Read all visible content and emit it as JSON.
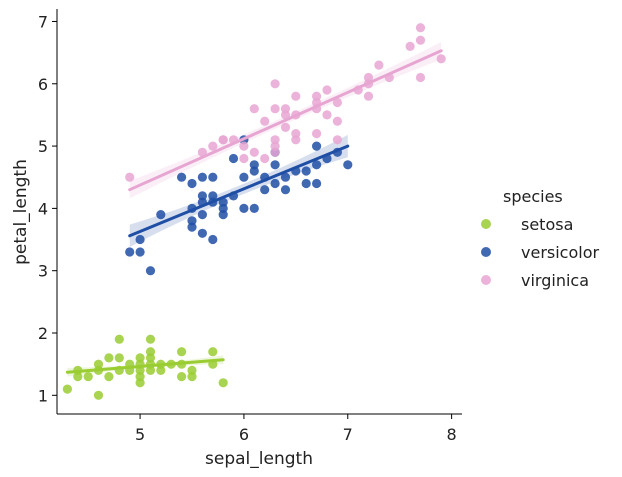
{
  "chart_data": {
    "type": "scatter",
    "xlabel": "sepal_length",
    "ylabel": "petal_length",
    "xlim": [
      4.2,
      8.1
    ],
    "ylim": [
      0.7,
      7.2
    ],
    "xticks": [
      5,
      6,
      7,
      8
    ],
    "yticks": [
      1,
      2,
      3,
      4,
      5,
      6,
      7
    ],
    "grid": false,
    "legend": {
      "title": "species",
      "placement": "right"
    },
    "series": [
      {
        "name": "setosa",
        "color": "#9acd32",
        "points": [
          [
            4.3,
            1.1
          ],
          [
            4.4,
            1.3
          ],
          [
            4.4,
            1.4
          ],
          [
            4.5,
            1.3
          ],
          [
            4.6,
            1.4
          ],
          [
            4.6,
            1.5
          ],
          [
            4.6,
            1.0
          ],
          [
            4.7,
            1.3
          ],
          [
            4.7,
            1.6
          ],
          [
            4.8,
            1.4
          ],
          [
            4.8,
            1.6
          ],
          [
            4.8,
            1.9
          ],
          [
            4.9,
            1.4
          ],
          [
            4.9,
            1.5
          ],
          [
            5.0,
            1.2
          ],
          [
            5.0,
            1.3
          ],
          [
            5.0,
            1.4
          ],
          [
            5.0,
            1.5
          ],
          [
            5.0,
            1.6
          ],
          [
            5.1,
            1.4
          ],
          [
            5.1,
            1.5
          ],
          [
            5.1,
            1.7
          ],
          [
            5.1,
            1.9
          ],
          [
            5.1,
            1.6
          ],
          [
            5.2,
            1.4
          ],
          [
            5.2,
            1.5
          ],
          [
            5.3,
            1.5
          ],
          [
            5.4,
            1.3
          ],
          [
            5.4,
            1.5
          ],
          [
            5.4,
            1.7
          ],
          [
            5.5,
            1.3
          ],
          [
            5.5,
            1.4
          ],
          [
            5.7,
            1.5
          ],
          [
            5.7,
            1.7
          ],
          [
            5.8,
            1.2
          ]
        ],
        "fit": {
          "x": [
            4.3,
            5.8
          ],
          "y": [
            1.37,
            1.57
          ]
        }
      },
      {
        "name": "versicolor",
        "color": "#1f4fa5",
        "points": [
          [
            4.9,
            3.3
          ],
          [
            5.0,
            3.3
          ],
          [
            5.0,
            3.5
          ],
          [
            5.1,
            3.0
          ],
          [
            5.2,
            3.9
          ],
          [
            5.4,
            4.5
          ],
          [
            5.5,
            3.7
          ],
          [
            5.5,
            3.8
          ],
          [
            5.5,
            4.0
          ],
          [
            5.5,
            4.4
          ],
          [
            5.6,
            3.6
          ],
          [
            5.6,
            3.9
          ],
          [
            5.6,
            4.1
          ],
          [
            5.6,
            4.2
          ],
          [
            5.6,
            4.5
          ],
          [
            5.7,
            3.5
          ],
          [
            5.7,
            4.1
          ],
          [
            5.7,
            4.2
          ],
          [
            5.7,
            4.5
          ],
          [
            5.8,
            3.9
          ],
          [
            5.8,
            4.0
          ],
          [
            5.8,
            4.1
          ],
          [
            5.9,
            4.2
          ],
          [
            5.9,
            4.8
          ],
          [
            6.0,
            4.0
          ],
          [
            6.0,
            4.5
          ],
          [
            6.0,
            5.1
          ],
          [
            6.1,
            4.0
          ],
          [
            6.1,
            4.6
          ],
          [
            6.1,
            4.7
          ],
          [
            6.2,
            4.3
          ],
          [
            6.2,
            4.5
          ],
          [
            6.3,
            4.4
          ],
          [
            6.3,
            4.7
          ],
          [
            6.3,
            4.9
          ],
          [
            6.4,
            4.3
          ],
          [
            6.4,
            4.5
          ],
          [
            6.5,
            4.6
          ],
          [
            6.6,
            4.4
          ],
          [
            6.6,
            4.6
          ],
          [
            6.7,
            4.4
          ],
          [
            6.7,
            4.7
          ],
          [
            6.7,
            5.0
          ],
          [
            6.8,
            4.8
          ],
          [
            6.9,
            4.9
          ],
          [
            7.0,
            4.7
          ]
        ],
        "fit": {
          "x": [
            4.9,
            7.0
          ],
          "y": [
            3.56,
            5.0
          ]
        }
      },
      {
        "name": "virginica",
        "color": "#e7a6d2",
        "points": [
          [
            4.9,
            4.5
          ],
          [
            5.6,
            4.9
          ],
          [
            5.7,
            5.0
          ],
          [
            5.8,
            5.1
          ],
          [
            5.8,
            5.1
          ],
          [
            5.9,
            5.1
          ],
          [
            6.0,
            4.8
          ],
          [
            6.0,
            5.0
          ],
          [
            6.1,
            4.9
          ],
          [
            6.1,
            5.6
          ],
          [
            6.2,
            4.8
          ],
          [
            6.2,
            5.4
          ],
          [
            6.3,
            4.9
          ],
          [
            6.3,
            5.0
          ],
          [
            6.3,
            5.1
          ],
          [
            6.3,
            5.6
          ],
          [
            6.3,
            6.0
          ],
          [
            6.4,
            5.3
          ],
          [
            6.4,
            5.5
          ],
          [
            6.4,
            5.6
          ],
          [
            6.5,
            5.1
          ],
          [
            6.5,
            5.2
          ],
          [
            6.5,
            5.5
          ],
          [
            6.5,
            5.8
          ],
          [
            6.7,
            5.2
          ],
          [
            6.7,
            5.6
          ],
          [
            6.7,
            5.7
          ],
          [
            6.7,
            5.8
          ],
          [
            6.8,
            5.5
          ],
          [
            6.8,
            5.9
          ],
          [
            6.9,
            5.1
          ],
          [
            6.9,
            5.4
          ],
          [
            6.9,
            5.7
          ],
          [
            7.1,
            5.9
          ],
          [
            7.2,
            5.8
          ],
          [
            7.2,
            6.0
          ],
          [
            7.2,
            6.1
          ],
          [
            7.3,
            6.3
          ],
          [
            7.4,
            6.1
          ],
          [
            7.6,
            6.6
          ],
          [
            7.7,
            6.1
          ],
          [
            7.7,
            6.7
          ],
          [
            7.7,
            6.9
          ],
          [
            7.9,
            6.4
          ]
        ],
        "fit": {
          "x": [
            4.9,
            7.9
          ],
          "y": [
            4.3,
            6.53
          ]
        }
      }
    ]
  }
}
